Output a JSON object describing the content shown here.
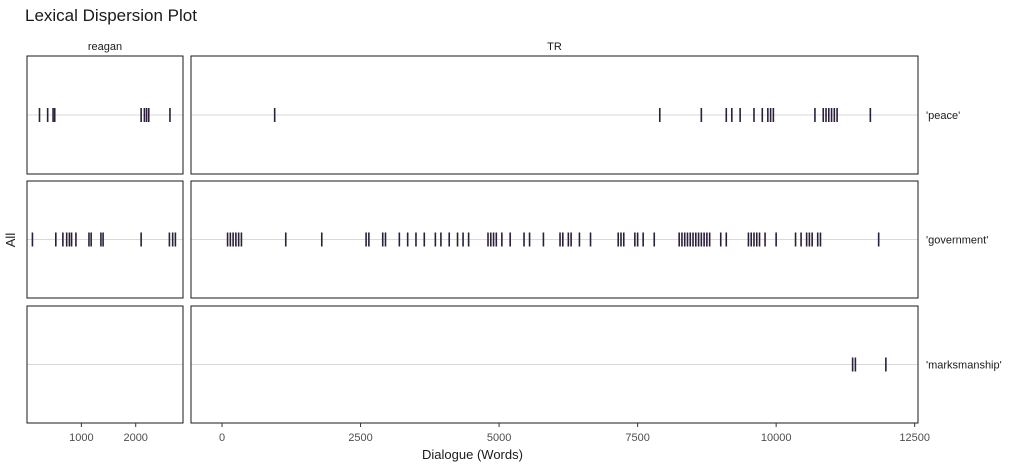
{
  "chart_data": {
    "type": "scatter",
    "title": "Lexical Dispersion Plot",
    "xlabel": "Dialogue (Words)",
    "ylabel": "All",
    "colors": {
      "mark": "#2b1f3a",
      "gridline": "#d9d9d9",
      "panel_border": "#1a1a1a"
    },
    "facets": [
      {
        "label": "reagan",
        "xlim": [
          0,
          2870
        ],
        "ticks": [
          1000,
          2000
        ],
        "tick_labels": [
          "1000",
          "2000"
        ]
      },
      {
        "label": "TR",
        "xlim": [
          -560,
          12560
        ],
        "ticks": [
          0,
          2500,
          5000,
          7500,
          10000,
          12500
        ],
        "tick_labels": [
          "0",
          "2500",
          "5000",
          "7500",
          "10000",
          "12500"
        ]
      }
    ],
    "rows": [
      {
        "label": "'peace'"
      },
      {
        "label": "'government'"
      },
      {
        "label": "'marksmanship'"
      }
    ],
    "occurrences": {
      "reagan": {
        "'peace'": [
          230,
          380,
          480,
          510,
          2100,
          2160,
          2200,
          2240,
          2630
        ],
        "'government'": [
          100,
          530,
          660,
          730,
          780,
          820,
          900,
          1140,
          1180,
          1360,
          1400,
          2100,
          2620,
          2680,
          2730
        ],
        "'marksmanship'": []
      },
      "TR": {
        "'peace'": [
          950,
          7900,
          8650,
          9100,
          9200,
          9350,
          9600,
          9750,
          9850,
          9900,
          9950,
          10700,
          10850,
          10900,
          10950,
          11000,
          11050,
          11100,
          11700
        ],
        "'government'": [
          100,
          150,
          200,
          250,
          300,
          350,
          1150,
          1800,
          2600,
          2650,
          2900,
          2950,
          3200,
          3350,
          3500,
          3650,
          3850,
          3950,
          4100,
          4250,
          4350,
          4450,
          4800,
          4850,
          4900,
          4950,
          5050,
          5200,
          5450,
          5550,
          5800,
          6100,
          6150,
          6250,
          6300,
          6450,
          6650,
          7150,
          7200,
          7250,
          7450,
          7500,
          7600,
          7800,
          8250,
          8300,
          8350,
          8400,
          8450,
          8500,
          8550,
          8600,
          8650,
          8700,
          8750,
          8800,
          9000,
          9100,
          9500,
          9550,
          9600,
          9650,
          9700,
          9800,
          10000,
          10350,
          10450,
          10550,
          10600,
          10650,
          10750,
          10800,
          11850
        ],
        "'marksmanship'": [
          11380,
          11430,
          11980
        ]
      }
    }
  }
}
